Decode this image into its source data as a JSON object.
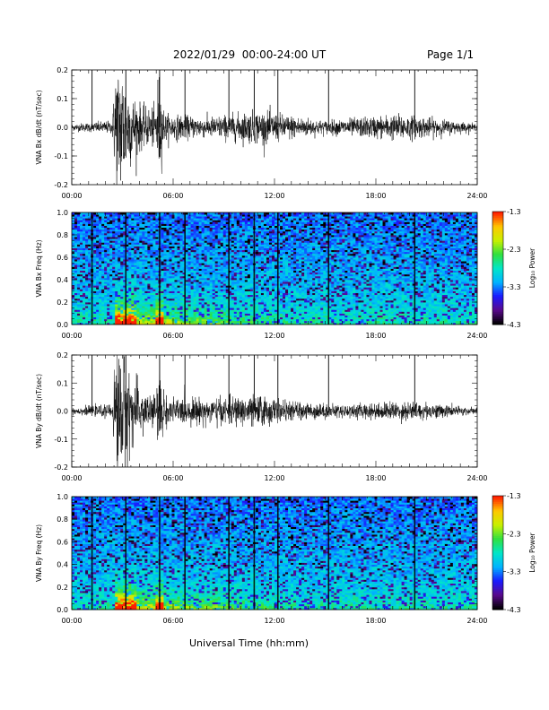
{
  "header": {
    "date_range": "2022/01/29  00:00-24:00 UT",
    "page": "Page 1/1"
  },
  "xaxis": {
    "label": "Universal Time (hh:mm)",
    "tick_labels": [
      "00:00",
      "06:00",
      "12:00",
      "18:00",
      "24:00"
    ],
    "range_hours": [
      0,
      24
    ]
  },
  "colorbar": {
    "label": "Log₁₀ Power",
    "tick_labels": [
      "-1.3",
      "-2.3",
      "-3.3",
      "-4.3"
    ],
    "range": [
      -4.3,
      -1.3
    ],
    "colors": [
      "#000000",
      "#5a0a8c",
      "#1a1aff",
      "#00b4ff",
      "#00e6c8",
      "#30e040",
      "#c8f000",
      "#ffc800",
      "#ff2000"
    ]
  },
  "chart_data": [
    {
      "type": "line",
      "id": "bx_waveform",
      "ylabel": "VNA Bx dB/dt (nT/sec)",
      "ylim": [
        -0.2,
        0.2
      ],
      "ytick_labels": [
        "0.2",
        "0.1",
        "0.0",
        "-0.1",
        "-0.2"
      ],
      "description_values": {
        "baseline": 0.0,
        "typical_amplitude": 0.01,
        "envelope": [
          {
            "t": 0.0,
            "amp": 0.01
          },
          {
            "t": 2.4,
            "amp": 0.02
          },
          {
            "t": 2.6,
            "amp": 0.2
          },
          {
            "t": 3.0,
            "amp": 0.2
          },
          {
            "t": 3.4,
            "amp": 0.12
          },
          {
            "t": 4.2,
            "amp": 0.06
          },
          {
            "t": 5.0,
            "amp": 0.06
          },
          {
            "t": 5.1,
            "amp": 0.18
          },
          {
            "t": 5.5,
            "amp": 0.04
          },
          {
            "t": 8.0,
            "amp": 0.03
          },
          {
            "t": 11.0,
            "amp": 0.05
          },
          {
            "t": 12.5,
            "amp": 0.04
          },
          {
            "t": 15.0,
            "amp": 0.02
          },
          {
            "t": 19.5,
            "amp": 0.04
          },
          {
            "t": 24.0,
            "amp": 0.01
          }
        ],
        "spikes_hours": [
          1.2,
          3.2,
          5.2,
          6.7,
          9.3,
          10.8,
          12.2,
          15.2,
          20.3
        ]
      },
      "color": "#000000"
    },
    {
      "type": "heatmap",
      "id": "bx_spectrogram",
      "ylabel": "VNA Bx Freq (Hz)",
      "ylim": [
        0.0,
        1.0
      ],
      "ytick_labels": [
        "1.0",
        "0.8",
        "0.6",
        "0.4",
        "0.2",
        "0.0"
      ],
      "value_range": [
        -4.3,
        -1.3
      ],
      "strong_low_freq_hours": [
        [
          2.5,
          3.8
        ],
        [
          5.0,
          5.5
        ]
      ],
      "stripe_hours": [
        1.2,
        3.2,
        5.2,
        6.7,
        9.3,
        10.8,
        12.2,
        15.2,
        20.3
      ]
    },
    {
      "type": "line",
      "id": "by_waveform",
      "ylabel": "VNA By dB/dt (nT/sec)",
      "ylim": [
        -0.2,
        0.2
      ],
      "ytick_labels": [
        "0.2",
        "0.1",
        "0.0",
        "-0.1",
        "-0.2"
      ],
      "description_values": {
        "baseline": 0.0,
        "typical_amplitude": 0.01,
        "envelope": [
          {
            "t": 0.0,
            "amp": 0.01
          },
          {
            "t": 2.4,
            "amp": 0.02
          },
          {
            "t": 2.6,
            "amp": 0.2
          },
          {
            "t": 3.1,
            "amp": 0.2
          },
          {
            "t": 3.6,
            "amp": 0.1
          },
          {
            "t": 4.4,
            "amp": 0.06
          },
          {
            "t": 5.0,
            "amp": 0.05
          },
          {
            "t": 5.2,
            "amp": 0.15
          },
          {
            "t": 5.6,
            "amp": 0.04
          },
          {
            "t": 9.0,
            "amp": 0.04
          },
          {
            "t": 11.2,
            "amp": 0.05
          },
          {
            "t": 12.5,
            "amp": 0.03
          },
          {
            "t": 16.0,
            "amp": 0.02
          },
          {
            "t": 20.0,
            "amp": 0.03
          },
          {
            "t": 24.0,
            "amp": 0.01
          }
        ],
        "spikes_hours": [
          1.2,
          3.2,
          5.2,
          6.7,
          9.3,
          10.8,
          12.2,
          15.2,
          20.3
        ]
      },
      "color": "#000000"
    },
    {
      "type": "heatmap",
      "id": "by_spectrogram",
      "ylabel": "VNA By Freq (Hz)",
      "ylim": [
        0.0,
        1.0
      ],
      "ytick_labels": [
        "1.0",
        "0.8",
        "0.6",
        "0.4",
        "0.2",
        "0.0"
      ],
      "value_range": [
        -4.3,
        -1.3
      ],
      "strong_low_freq_hours": [
        [
          2.5,
          3.8
        ],
        [
          5.0,
          5.5
        ]
      ],
      "stripe_hours": [
        1.2,
        3.2,
        5.2,
        6.7,
        9.3,
        10.8,
        12.2,
        15.2,
        20.3
      ]
    }
  ]
}
